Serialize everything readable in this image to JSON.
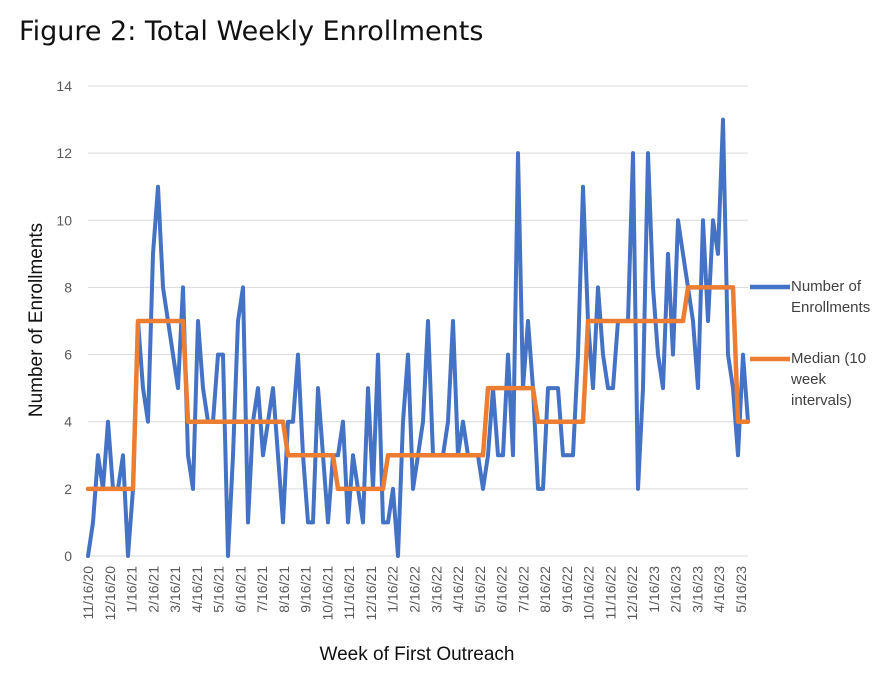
{
  "title": "Figure 2: Total Weekly Enrollments",
  "chart_data": {
    "type": "line",
    "title": "Figure 2: Total Weekly Enrollments",
    "xlabel": "Week of First Outreach",
    "ylabel": "Number of Enrollments",
    "ylim": [
      0,
      14
    ],
    "yticks": [
      0,
      2,
      4,
      6,
      8,
      10,
      12,
      14
    ],
    "grid": true,
    "legend_position": "right",
    "x_tick_labels": [
      "11/16/20",
      "12/16/20",
      "1/16/21",
      "2/16/21",
      "3/16/21",
      "4/16/21",
      "5/16/21",
      "6/16/21",
      "7/16/21",
      "8/16/21",
      "9/16/21",
      "10/16/21",
      "11/16/21",
      "12/16/21",
      "1/16/22",
      "2/16/22",
      "3/16/22",
      "4/16/22",
      "5/16/22",
      "6/16/22",
      "7/16/22",
      "8/16/22",
      "9/16/22",
      "10/16/22",
      "11/16/22",
      "12/16/22",
      "1/16/23",
      "2/16/23",
      "3/16/23",
      "4/16/23",
      "5/16/23"
    ],
    "series": [
      {
        "name": "Number of Enrollments",
        "color": "#4472C4",
        "values": [
          0,
          1,
          3,
          2,
          4,
          2,
          2,
          3,
          0,
          2,
          7,
          5,
          4,
          9,
          11,
          8,
          7,
          6,
          5,
          8,
          3,
          2,
          7,
          5,
          4,
          4,
          6,
          6,
          0,
          3,
          7,
          8,
          1,
          4,
          5,
          3,
          4,
          5,
          3,
          1,
          4,
          4,
          6,
          3,
          1,
          1,
          5,
          3,
          1,
          3,
          3,
          4,
          1,
          3,
          2,
          1,
          5,
          2,
          6,
          1,
          1,
          2,
          0,
          4,
          6,
          2,
          3,
          4,
          7,
          3,
          3,
          3,
          4,
          7,
          3,
          4,
          3,
          3,
          3,
          2,
          3,
          5,
          3,
          3,
          6,
          3,
          12,
          5,
          7,
          5,
          2,
          2,
          5,
          5,
          5,
          3,
          3,
          3,
          6,
          11,
          7,
          5,
          8,
          6,
          5,
          5,
          7,
          7,
          7,
          12,
          2,
          5,
          12,
          8,
          6,
          5,
          9,
          6,
          10,
          9,
          8,
          7,
          5,
          10,
          7,
          10,
          9,
          13,
          6,
          5,
          3,
          6,
          4
        ]
      },
      {
        "name": "Median (10 week intervals)",
        "color": "#ED7D31",
        "values": [
          2,
          2,
          2,
          2,
          2,
          2,
          2,
          2,
          2,
          2,
          7,
          7,
          7,
          7,
          7,
          7,
          7,
          7,
          7,
          7,
          4,
          4,
          4,
          4,
          4,
          4,
          4,
          4,
          4,
          4,
          4,
          4,
          4,
          4,
          4,
          4,
          4,
          4,
          4,
          4,
          3,
          3,
          3,
          3,
          3,
          3,
          3,
          3,
          3,
          3,
          2,
          2,
          2,
          2,
          2,
          2,
          2,
          2,
          2,
          2,
          3,
          3,
          3,
          3,
          3,
          3,
          3,
          3,
          3,
          3,
          3,
          3,
          3,
          3,
          3,
          3,
          3,
          3,
          3,
          3,
          5,
          5,
          5,
          5,
          5,
          5,
          5,
          5,
          5,
          5,
          4,
          4,
          4,
          4,
          4,
          4,
          4,
          4,
          4,
          4,
          7,
          7,
          7,
          7,
          7,
          7,
          7,
          7,
          7,
          7,
          7,
          7,
          7,
          7,
          7,
          7,
          7,
          7,
          7,
          7,
          8,
          8,
          8,
          8,
          8,
          8,
          8,
          8,
          8,
          8,
          4,
          4,
          4
        ]
      }
    ],
    "legend": [
      {
        "lines": [
          "Number of",
          "Enrollments"
        ],
        "color": "#4472C4"
      },
      {
        "lines": [
          "Median (10",
          "week",
          "intervals)"
        ],
        "color": "#ED7D31"
      }
    ]
  }
}
